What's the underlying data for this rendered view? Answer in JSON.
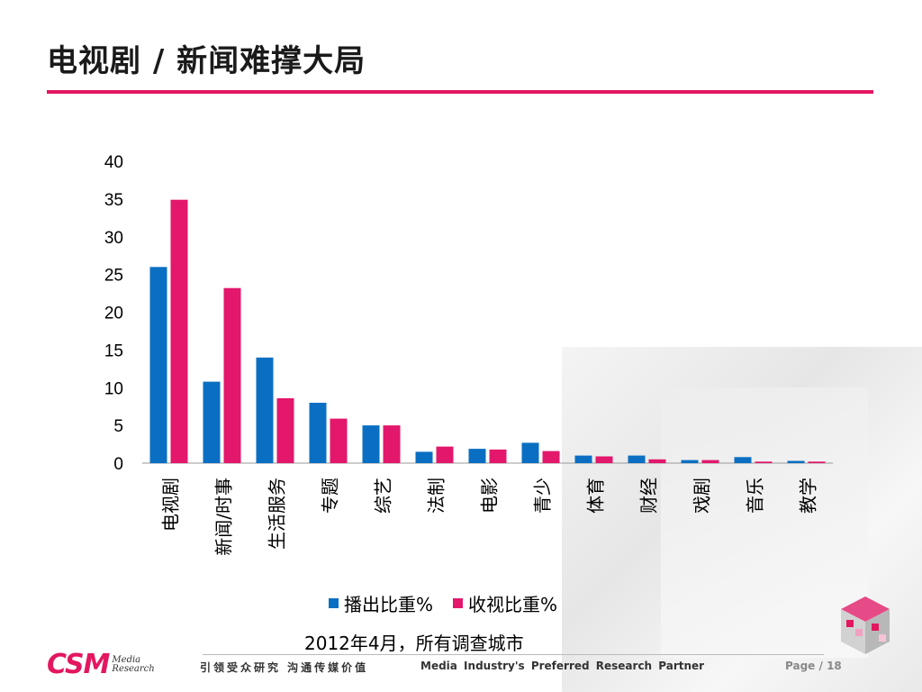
{
  "title": "电视剧 / 新闻难撑大局",
  "subtitle": "2012年4月，所有调查城市",
  "footer": {
    "logo_main": "CSM",
    "logo_sub_1": "Media",
    "logo_sub_2": "Research",
    "slogan_cn": "引领受众研究 沟通传媒价值",
    "slogan_en": "Media Industry's Preferred Research Partner",
    "page_label": "Page",
    "page_sep": "/",
    "page_num": "18"
  },
  "colors": {
    "accent": "#e3175f",
    "series1": "#0a6fc2",
    "series2": "#e3176b"
  },
  "chart_data": {
    "type": "bar",
    "categories": [
      "电视剧",
      "新闻/时事",
      "生活服务",
      "专题",
      "综艺",
      "法制",
      "电影",
      "青少",
      "体育",
      "财经",
      "戏剧",
      "音乐",
      "教学"
    ],
    "series": [
      {
        "name": "播出比重%",
        "values": [
          26.0,
          10.8,
          14.0,
          8.0,
          5.0,
          1.5,
          1.9,
          2.7,
          1.0,
          1.0,
          0.4,
          0.8,
          0.3
        ]
      },
      {
        "name": "收视比重%",
        "values": [
          34.9,
          23.2,
          8.6,
          5.9,
          5.0,
          2.2,
          1.8,
          1.6,
          0.9,
          0.5,
          0.4,
          0.2,
          0.2
        ]
      }
    ],
    "yticks": [
      "0",
      "5",
      "10",
      "15",
      "20",
      "25",
      "30",
      "35",
      "40"
    ],
    "ylim": [
      0,
      40
    ],
    "grid": false,
    "legend": "bottom"
  }
}
